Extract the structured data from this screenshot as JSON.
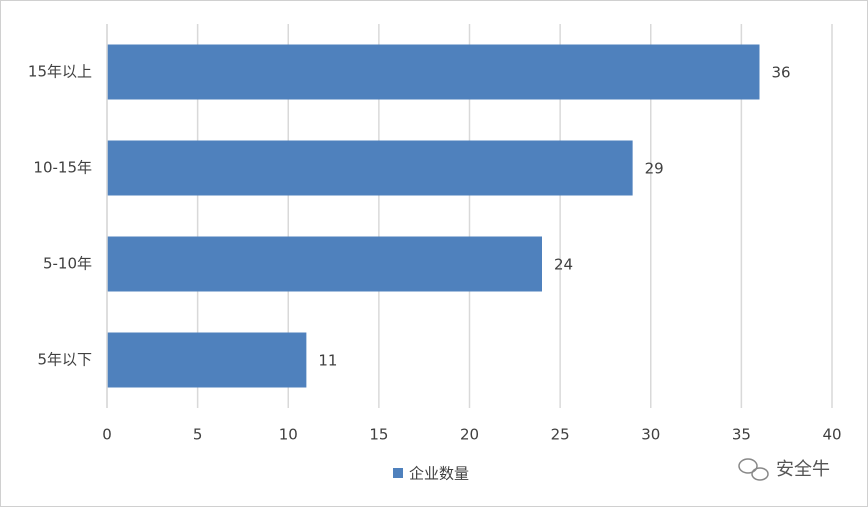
{
  "chart_data": {
    "type": "bar",
    "orientation": "horizontal",
    "categories": [
      "15年以上",
      "10-15年",
      "5-10年",
      "5年以下"
    ],
    "series": [
      {
        "name": "企业数量",
        "color": "#4f81bd",
        "values": [
          36,
          29,
          24,
          11
        ]
      }
    ],
    "xlim": [
      0,
      40
    ],
    "xticks": [
      0,
      5,
      10,
      15,
      20,
      25,
      30,
      35,
      40
    ],
    "grid": true,
    "legend": "bottom",
    "watermark": "安全牛"
  }
}
